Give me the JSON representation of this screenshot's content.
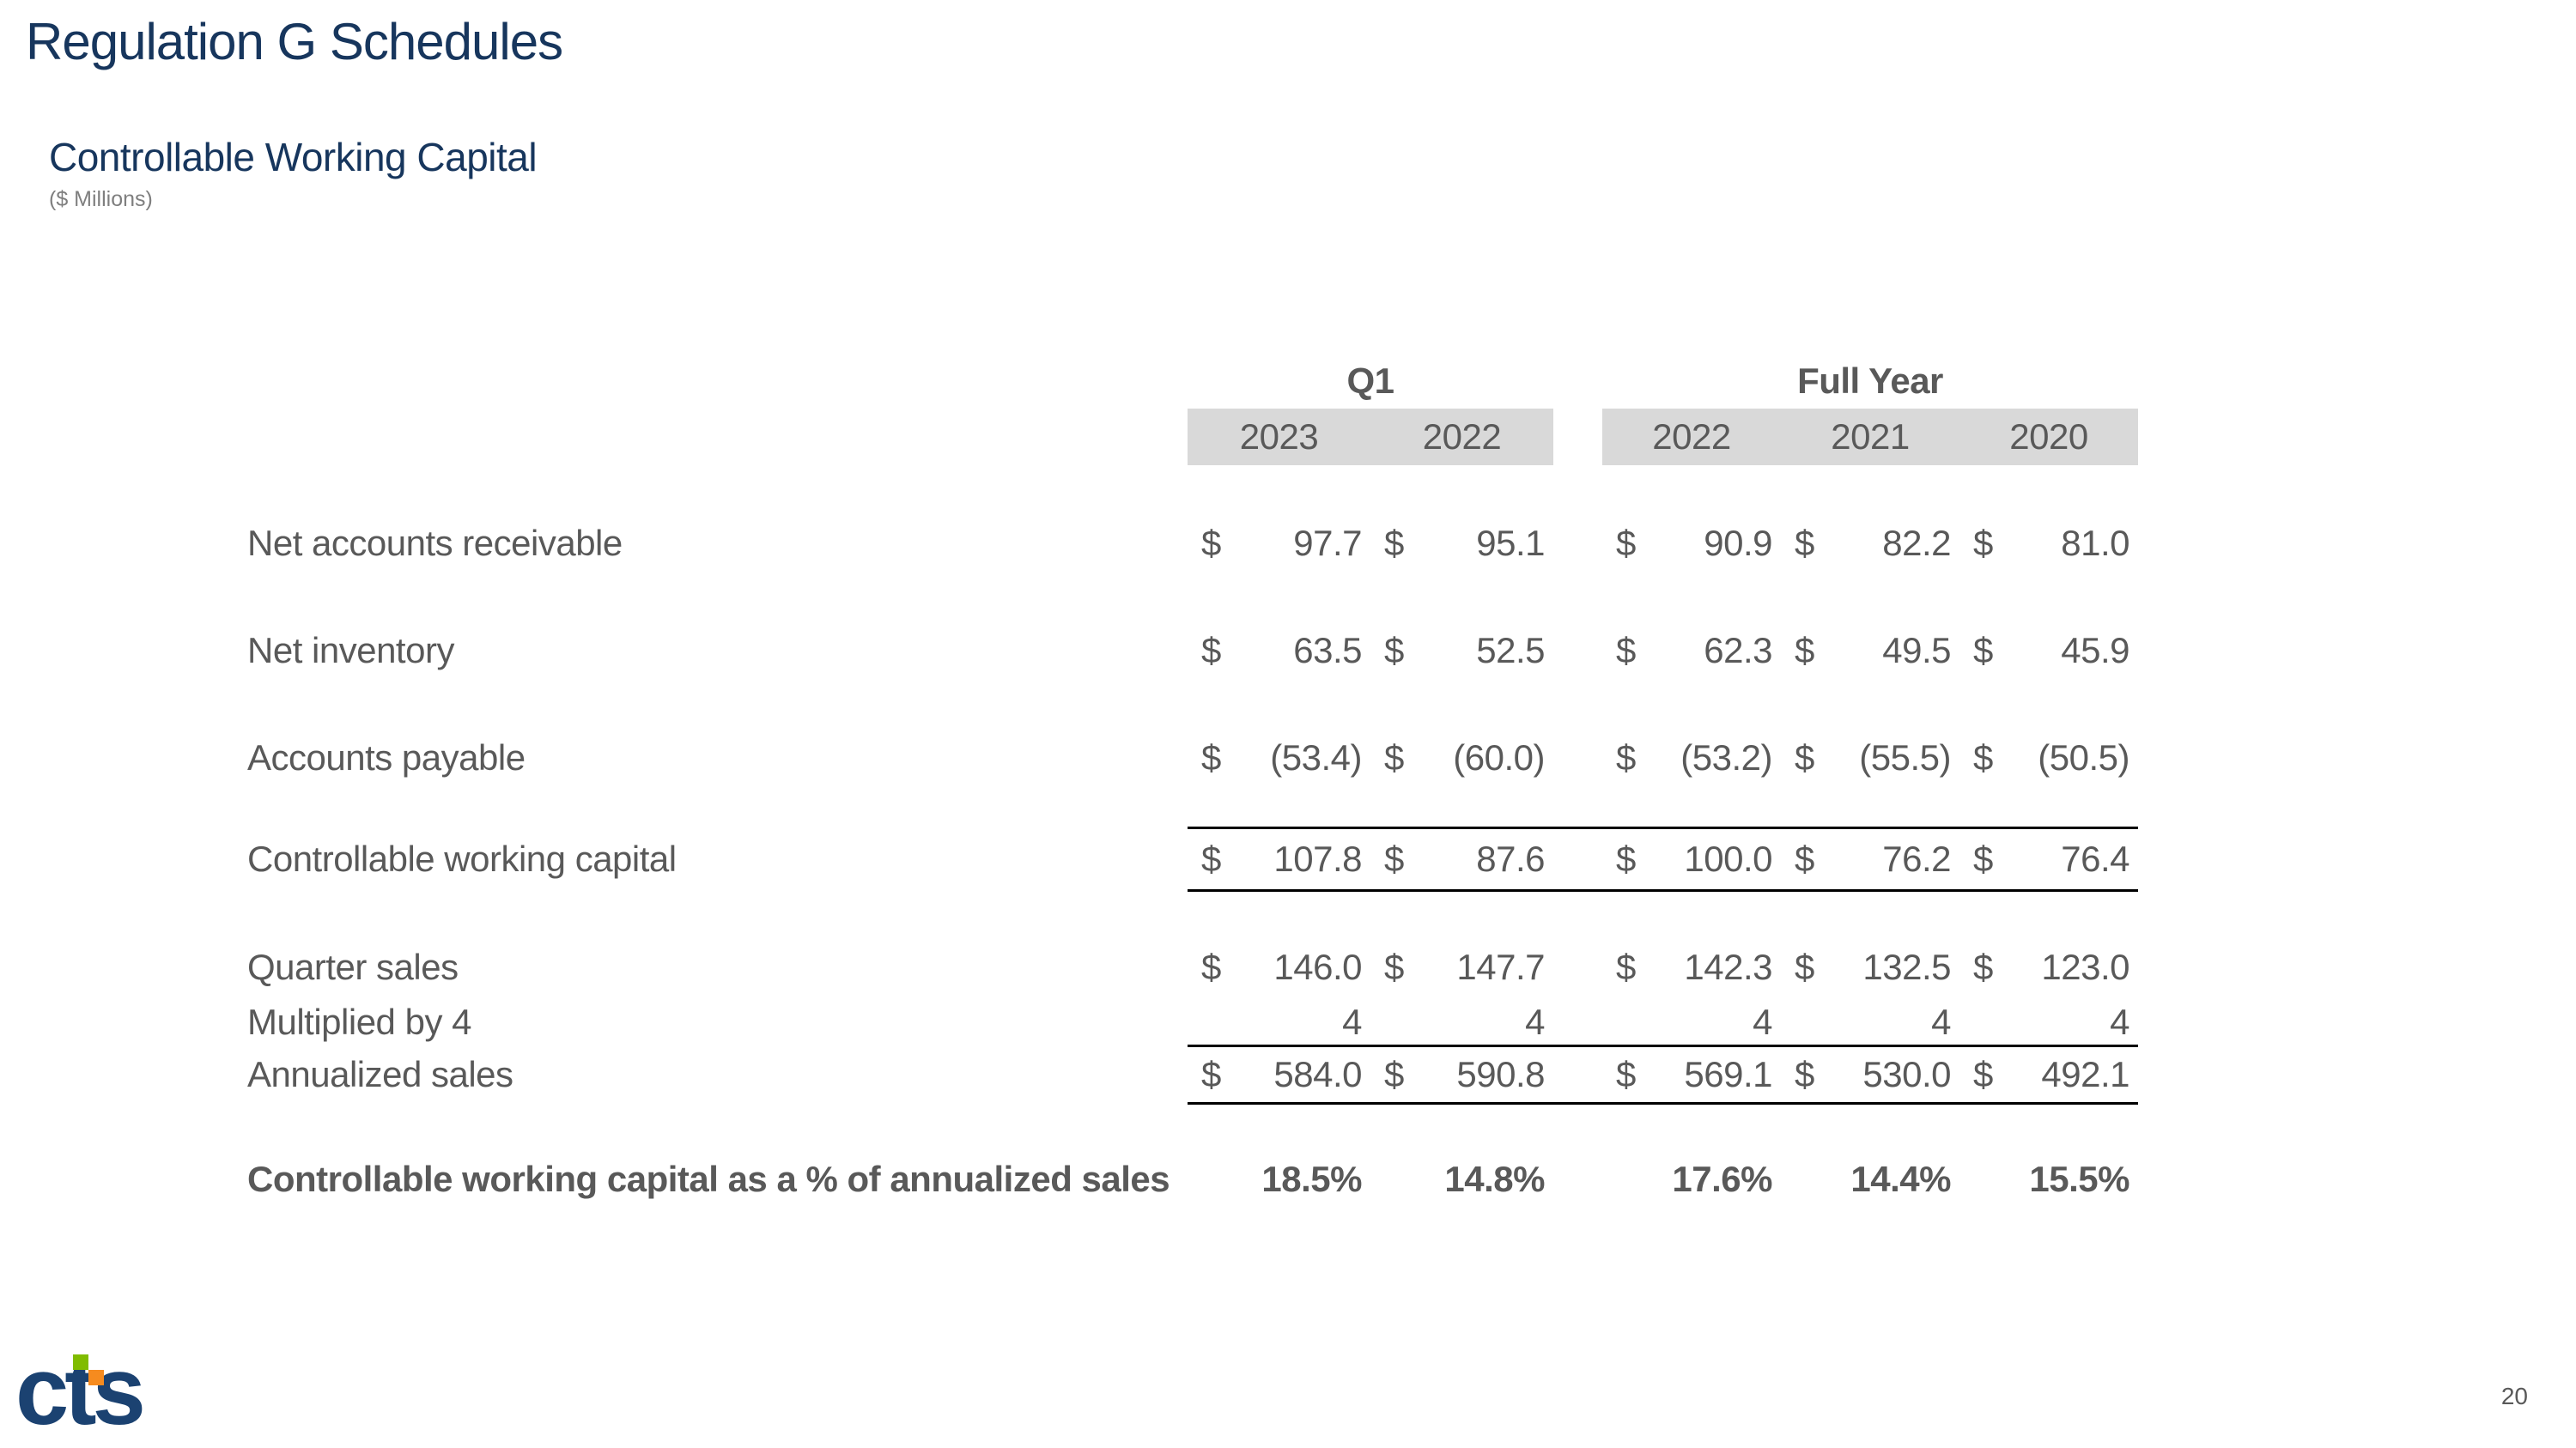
{
  "page": {
    "title": "Regulation G Schedules",
    "page_number": "20"
  },
  "section": {
    "title": "Controllable Working Capital",
    "unit_note": "($ Millions)"
  },
  "table": {
    "currency_symbol": "$",
    "groups": [
      {
        "label": "Q1",
        "years": [
          "2023",
          "2022"
        ]
      },
      {
        "label": "Full Year",
        "years": [
          "2022",
          "2021",
          "2020"
        ]
      }
    ],
    "rows": [
      {
        "label": "Net accounts receivable",
        "dollar": true,
        "values": [
          "97.7",
          "95.1",
          "90.9",
          "82.2",
          "81.0"
        ]
      },
      {
        "label": "Net inventory",
        "dollar": true,
        "values": [
          "63.5",
          "52.5",
          "62.3",
          "49.5",
          "45.9"
        ]
      },
      {
        "label": "Accounts payable",
        "dollar": true,
        "values": [
          "(53.4)",
          "(60.0)",
          "(53.2)",
          "(55.5)",
          "(50.5)"
        ]
      },
      {
        "label": "Controllable working capital",
        "dollar": true,
        "values": [
          "107.8",
          "87.6",
          "100.0",
          "76.2",
          "76.4"
        ],
        "border": "top-bottom"
      },
      {
        "label": "Quarter sales",
        "dollar": true,
        "values": [
          "146.0",
          "147.7",
          "142.3",
          "132.5",
          "123.0"
        ]
      },
      {
        "label": "Multiplied by 4",
        "dollar": false,
        "values": [
          "4",
          "4",
          "4",
          "4",
          "4"
        ]
      },
      {
        "label": "Annualized sales",
        "dollar": true,
        "values": [
          "584.0",
          "590.8",
          "569.1",
          "530.0",
          "492.1"
        ],
        "border": "top-bottom"
      },
      {
        "label": "Controllable working capital as a % of annualized sales",
        "dollar": false,
        "values": [
          "18.5%",
          "14.8%",
          "17.6%",
          "14.4%",
          "15.5%"
        ],
        "bold": true
      }
    ]
  },
  "logo": {
    "text": "cts"
  },
  "colors": {
    "title_navy": "#17365d",
    "table_text_gray": "#595959",
    "year_band_gray": "#d9d9d9",
    "border_black": "#000000",
    "logo_navy": "#1b4271",
    "logo_green": "#80bc00",
    "logo_orange": "#f68b1f",
    "unit_note_gray": "#7f7f7f"
  }
}
